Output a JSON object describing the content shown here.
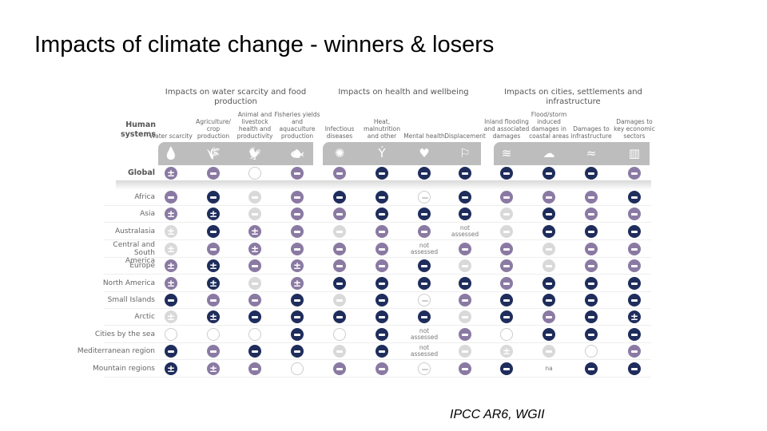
{
  "slide": {
    "title": "Impacts of climate change - winners & losers",
    "source": "IPCC AR6, WGII"
  },
  "figure": {
    "row_header": "Human systems",
    "groups": [
      {
        "label": "Impacts on water scarcity and food production"
      },
      {
        "label": "Impacts on health and wellbeing"
      },
      {
        "label": "Impacts on cities, settlements and infrastructure"
      }
    ],
    "columns": [
      {
        "label": "Water scarcity",
        "icon": "water-drop-icon",
        "glyph": "💧"
      },
      {
        "label": "Agriculture/ crop production",
        "icon": "wheat-icon",
        "glyph": "🌾"
      },
      {
        "label": "Animal and livestock health and productivity",
        "icon": "chicken-icon",
        "glyph": "🐓"
      },
      {
        "label": "Fisheries yields and aquaculture production",
        "icon": "fish-icon",
        "glyph": "🐟"
      },
      {
        "label": "Infectious diseases",
        "icon": "virus-icon",
        "glyph": "✺"
      },
      {
        "label": "Heat, malnutrition and other",
        "icon": "heat-figure-icon",
        "glyph": "Ý"
      },
      {
        "label": "Mental health",
        "icon": "head-heart-icon",
        "glyph": "♥"
      },
      {
        "label": "Displacement",
        "icon": "displacement-icon",
        "glyph": "⚐"
      },
      {
        "label": "Inland flooding and associated damages",
        "icon": "flood-icon",
        "glyph": "≋"
      },
      {
        "label": "Flood/storm induced damages in coastal areas",
        "icon": "storm-cloud-icon",
        "glyph": "☁"
      },
      {
        "label": "Damages to infrastructure",
        "icon": "collapsed-infrastructure-icon",
        "glyph": "≈"
      },
      {
        "label": "Damages to key economic sectors",
        "icon": "declining-bars-icon",
        "glyph": "▥"
      }
    ],
    "legend_codes": {
      "D": "#1f2d5c",
      "P": "#8a7aa3",
      "L": "#d9d9d9",
      "O": "#ffffff"
    },
    "rows": [
      {
        "label": "Global",
        "cells": [
          "P±",
          "P-",
          "O",
          "P-",
          "P-",
          "D-",
          "D-",
          "D-",
          "D-",
          "D-",
          "D-",
          "P-"
        ]
      },
      {
        "label": "Africa",
        "cells": [
          "P-",
          "D-",
          "L-",
          "P-",
          "D-",
          "D-",
          "O-",
          "D-",
          "P-",
          "P-",
          "P-",
          "D-"
        ]
      },
      {
        "label": "Asia",
        "cells": [
          "P±",
          "D±",
          "L-",
          "P-",
          "P-",
          "D-",
          "D-",
          "D-",
          "L-",
          "D-",
          "P-",
          "P-"
        ]
      },
      {
        "label": "Australasia",
        "cells": [
          "L±",
          "D-",
          "P±",
          "P-",
          "L-",
          "P-",
          "P-",
          "not assessed",
          "L-",
          "D-",
          "D-",
          "D-"
        ]
      },
      {
        "label": "Central and South America",
        "cells": [
          "L±",
          "P-",
          "P±",
          "P-",
          "P-",
          "P-",
          "not assessed",
          "P-",
          "P-",
          "L-",
          "P-",
          "P-"
        ]
      },
      {
        "label": "Europe",
        "cells": [
          "P±",
          "D±",
          "P-",
          "P±",
          "P-",
          "P-",
          "D-",
          "L-",
          "P-",
          "L-",
          "P-",
          "P-"
        ]
      },
      {
        "label": "North America",
        "cells": [
          "P±",
          "D±",
          "L-",
          "P±",
          "D-",
          "D-",
          "D-",
          "D-",
          "P-",
          "D-",
          "D-",
          "D-"
        ]
      },
      {
        "label": "Small Islands",
        "cells": [
          "D-",
          "P-",
          "P-",
          "D-",
          "L-",
          "D-",
          "O-",
          "P-",
          "D-",
          "D-",
          "D-",
          "D-"
        ]
      },
      {
        "label": "Arctic",
        "cells": [
          "L±",
          "D±",
          "D-",
          "D-",
          "D-",
          "D-",
          "D-",
          "L-",
          "D-",
          "P-",
          "D-",
          "D±"
        ]
      },
      {
        "label": "Cities by the sea",
        "cells": [
          "O",
          "O",
          "O",
          "D-",
          "O",
          "D-",
          "not assessed",
          "P-",
          "O",
          "D-",
          "D-",
          "D-"
        ]
      },
      {
        "label": "Mediterranean region",
        "cells": [
          "D-",
          "P-",
          "D-",
          "D-",
          "L-",
          "D-",
          "not assessed",
          "L-",
          "L±",
          "L-",
          "O",
          "P-"
        ]
      },
      {
        "label": "Mountain regions",
        "cells": [
          "D±",
          "P±",
          "P-",
          "O",
          "P-",
          "P-",
          "O-",
          "P-",
          "D-",
          "na",
          "D-",
          "D-"
        ]
      }
    ]
  }
}
